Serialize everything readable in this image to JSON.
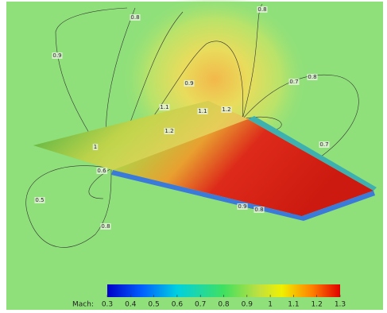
{
  "colorbar": {
    "label": "Mach:",
    "range": [
      0.3,
      1.3
    ],
    "ticks": [
      0.3,
      0.4,
      0.5,
      0.6,
      0.7,
      0.8,
      0.9,
      1,
      1.1,
      1.2,
      1.3
    ]
  },
  "contour_labels": [
    "0.9",
    "0.8",
    "1",
    "1.1",
    "1.2",
    "1.1",
    "1.2",
    "0.9",
    "0.8",
    "0.7",
    "0.8",
    "0.7",
    "0.6",
    "0.5",
    "0.8",
    "0.9",
    "0.8"
  ]
}
